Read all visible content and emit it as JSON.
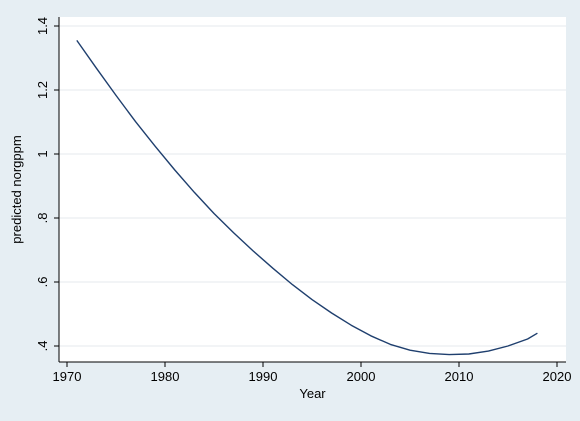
{
  "chart_data": {
    "type": "line",
    "title": "",
    "xlabel": "Year",
    "ylabel": "predicted norgppm",
    "xlim": [
      1970,
      2020
    ],
    "ylim": [
      0.4,
      1.4
    ],
    "xticks": [
      1970,
      1980,
      1990,
      2000,
      2010,
      2020
    ],
    "xtick_labels": [
      "1970",
      "1980",
      "1990",
      "2000",
      "2010",
      "2020"
    ],
    "yticks": [
      0.4,
      0.6,
      0.8,
      1.0,
      1.2,
      1.4
    ],
    "ytick_labels": [
      ".4",
      ".6",
      ".8",
      "1",
      "1.2",
      "1.4"
    ],
    "grid": true,
    "legend": "none",
    "colors": {
      "line": "#1f3f6e",
      "plot_background": "#ffffff",
      "outer_background": "#e6eef3",
      "grid": "#e4eaee"
    },
    "series": [
      {
        "x": [
          1971,
          1973,
          1975,
          1977,
          1979,
          1981,
          1983,
          1985,
          1987,
          1989,
          1991,
          1993,
          1995,
          1997,
          1999,
          2001,
          2003,
          2005,
          2007,
          2009,
          2011,
          2013,
          2015,
          2017,
          2018
        ],
        "y": [
          1.355,
          1.268,
          1.183,
          1.101,
          1.024,
          0.95,
          0.88,
          0.814,
          0.754,
          0.697,
          0.643,
          0.592,
          0.545,
          0.503,
          0.465,
          0.432,
          0.405,
          0.387,
          0.377,
          0.373,
          0.375,
          0.384,
          0.4,
          0.422,
          0.44
        ]
      }
    ]
  }
}
